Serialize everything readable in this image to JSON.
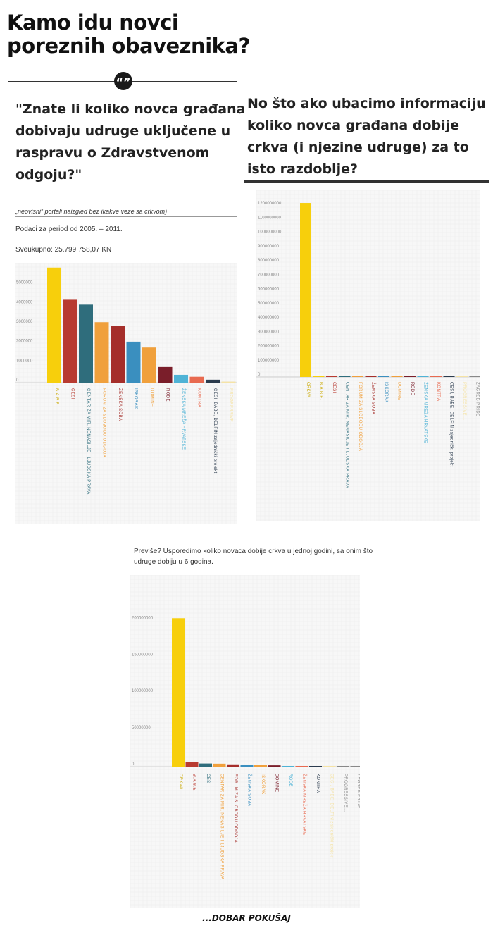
{
  "header": {
    "title_line1": "Kamo idu novci",
    "title_line2": "poreznih obaveznika?",
    "quote_glyph": "“”"
  },
  "left_question": "\"Znate li koliko novca građana dobivaju udruge uključene u raspravu o Zdravstvenom odgoju?\"",
  "right_question": "No što ako ubacimo informaciju koliko novca građana dobije crkva (i njezine udruge) za to isto razdoblje?",
  "left_meta": {
    "source_note": "„neovisni“ portali naizgled bez ikakve veze sa crkvom)",
    "period": "Podaci za period od 2005. – 2011.",
    "total": "Sveukupno: 25.799.758,07 KN"
  },
  "bottom_note": "Previše? Usporedimo koliko novaca dobije crkva u jednoj godini, sa onim što udruge dobiju u 6 godina.",
  "footer": "...DOBAR POKUŠAJ",
  "colors": {
    "yellow": "#f7cf0c",
    "red": "#b83a30",
    "teal": "#2f6d7c",
    "orange": "#f0a03c",
    "darkred": "#a52e2a",
    "blue": "#3a8fbf",
    "maroon": "#7a1e2a",
    "lightblue": "#4fb3d6",
    "salmon": "#e86a50",
    "navy": "#2b3b4d",
    "pale": "#f5e3a6"
  },
  "chart_data": [
    {
      "type": "bar",
      "categories": [
        "B.A.B.E.",
        "CESI",
        "CENTAR ZA MIR, NENASILJE I LJUDSKA PRAVA",
        "FORUM ZA SLOBODU ODGOJA",
        "ŽENSKA SOBA",
        "ISKORAK",
        "DOMINE",
        "RODE",
        "ŽENSKA MREŽA HRVATSKE",
        "KONTRA",
        "CESI, BABE, DELFIN zajednički projekt",
        "PROGRESSIVE..."
      ],
      "values": [
        5900000,
        4250000,
        4000000,
        3100000,
        2900000,
        2100000,
        1800000,
        800000,
        400000,
        300000,
        150000,
        50000
      ],
      "colors": [
        "#f7cf0c",
        "#b83a30",
        "#2f6d7c",
        "#f0a03c",
        "#a52e2a",
        "#3a8fbf",
        "#f0a03c",
        "#7a1e2a",
        "#4fb3d6",
        "#e86a50",
        "#2b3b4d",
        "#f5e3a6"
      ],
      "yticks": [
        "0",
        "1000000",
        "2000000",
        "3000000",
        "4000000",
        "5000000"
      ],
      "ylim": [
        0,
        6000000
      ]
    },
    {
      "type": "bar",
      "categories": [
        "CRKVA",
        "B.A.B.E.",
        "CESI",
        "CENTAR ZA MIR, NENASILJE I LJUDSKA PRAVA",
        "FORUM ZA SLOBODU ODGOJA",
        "ŽENSKA SOBA",
        "ISKORAK",
        "DOMINE",
        "RODE",
        "ŽENSKA MREŽA HRVATSKE",
        "KONTRA",
        "CESI, BABE, DELFIN zajednički projekt",
        "PROGRESSIVE...",
        "ZAGREB PRIDE"
      ],
      "values": [
        1220000000,
        5900000,
        4250000,
        4000000,
        3100000,
        2900000,
        2100000,
        1800000,
        800000,
        400000,
        300000,
        150000,
        50000,
        30000
      ],
      "colors": [
        "#f7cf0c",
        "#f7cf0c",
        "#b83a30",
        "#2f6d7c",
        "#f0a03c",
        "#a52e2a",
        "#3a8fbf",
        "#f0a03c",
        "#7a1e2a",
        "#4fb3d6",
        "#e86a50",
        "#2b3b4d",
        "#f5e3a6",
        "#888888"
      ],
      "yticks": [
        "0",
        "100000000",
        "200000000",
        "300000000",
        "400000000",
        "500000000",
        "600000000",
        "700000000",
        "800000000",
        "900000000",
        "1000000000",
        "1100000000",
        "1200000000"
      ],
      "ylim": [
        0,
        1240000000
      ]
    },
    {
      "type": "bar",
      "categories": [
        "CRKVA",
        "B.A.B.E.",
        "CESI",
        "CENTAR ZA MIR, NENASILJE I LJUDSKA PRAVA",
        "FORUM ZA SLOBODU ODGOJA",
        "ŽENSKA SOBA",
        "ISKORAK",
        "DOMINE",
        "RODE",
        "ŽENSKA MREŽA HRVATSKE",
        "KONTRA",
        "CESI, BABE, DELFIN zajednički projekt",
        "PROGRESSIVE...",
        "ZAGREB PRIDE"
      ],
      "values": [
        203000000,
        5900000,
        4250000,
        4000000,
        3100000,
        2900000,
        2100000,
        1800000,
        800000,
        400000,
        300000,
        150000,
        50000,
        30000
      ],
      "colors": [
        "#f7cf0c",
        "#b83a30",
        "#2f6d7c",
        "#f0a03c",
        "#a52e2a",
        "#3a8fbf",
        "#f0a03c",
        "#7a1e2a",
        "#4fb3d6",
        "#e86a50",
        "#2b3b4d",
        "#f5e3a6",
        "#888888",
        "#888888"
      ],
      "yticks": [
        "0",
        "50000000",
        "100000000",
        "150000000",
        "200000000"
      ],
      "ylim": [
        0,
        210000000
      ]
    }
  ]
}
